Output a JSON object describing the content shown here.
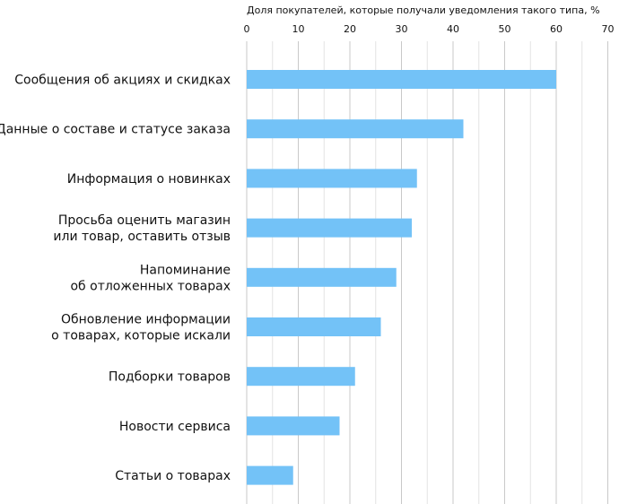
{
  "chart_data": {
    "type": "bar",
    "orientation": "horizontal",
    "xlabel": "Доля покупателей, которые получали уведомления такого типа, %",
    "xlim": [
      0,
      70
    ],
    "ticks": [
      0,
      10,
      20,
      30,
      40,
      50,
      60,
      70
    ],
    "tick_labels": [
      "0",
      "10",
      "20",
      "30",
      "40",
      "50",
      "60",
      "70"
    ],
    "grid": true,
    "bar_color": "#73c2f7",
    "grid_color": "#e3e3e3",
    "categories": [
      [
        "Сообщения об акциях и скидках"
      ],
      [
        "Данные о составе и статусе заказа"
      ],
      [
        "Информация о новинках"
      ],
      [
        "Просьба оценить магазин",
        "или товар, оставить отзыв"
      ],
      [
        "Напоминание",
        "об отложенных товарах"
      ],
      [
        "Обновление информации",
        "о товарах, которые искали"
      ],
      [
        "Подборки товаров"
      ],
      [
        "Новости сервиса"
      ],
      [
        "Статьи о товарах"
      ]
    ],
    "values": [
      60,
      42,
      33,
      32,
      29,
      26,
      21,
      18,
      9
    ]
  }
}
